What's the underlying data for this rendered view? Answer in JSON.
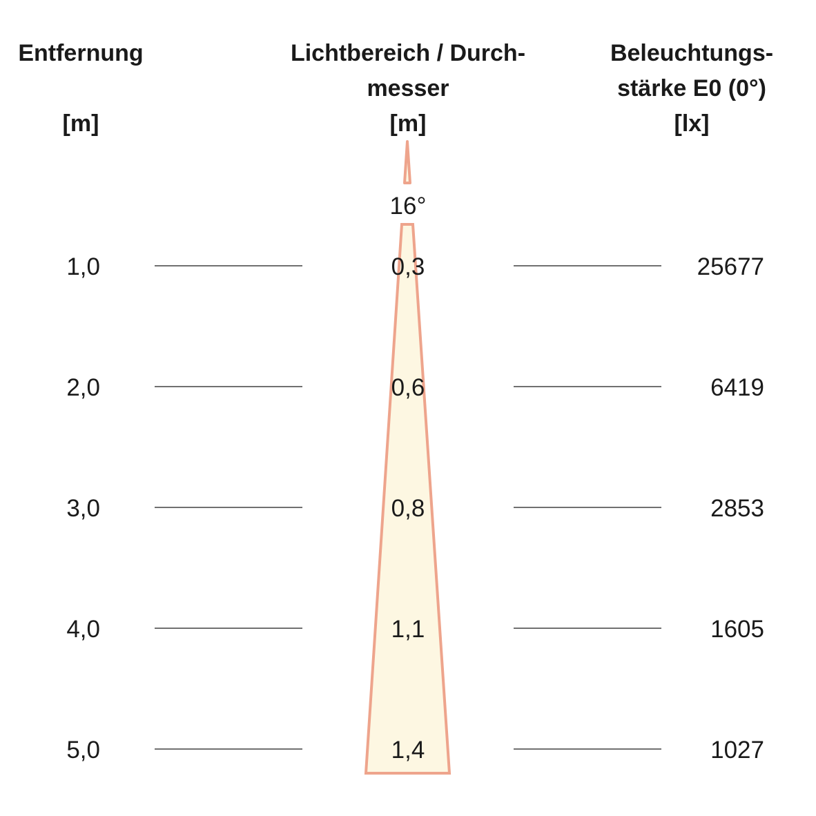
{
  "headers": {
    "distance": {
      "line1": "Entfernung",
      "unit": "[m]"
    },
    "diameter": {
      "line1": "Lichtbereich / Durch-",
      "line2": "messer",
      "unit": "[m]"
    },
    "illuminance": {
      "line1": "Beleuchtungs-",
      "line2": "stärke E0 (0°)",
      "unit": "[lx]"
    }
  },
  "beam_angle": "16°",
  "rows": [
    {
      "distance": "1,0",
      "diameter": "0,3",
      "illuminance": "25677"
    },
    {
      "distance": "2,0",
      "diameter": "0,6",
      "illuminance": "6419"
    },
    {
      "distance": "3,0",
      "diameter": "0,8",
      "illuminance": "2853"
    },
    {
      "distance": "4,0",
      "diameter": "1,1",
      "illuminance": "1605"
    },
    {
      "distance": "5,0",
      "diameter": "1,4",
      "illuminance": "1027"
    }
  ],
  "colors": {
    "cone_fill": "#fdf7e2",
    "cone_edge": "#eea48c",
    "text": "#1a1a1a",
    "line": "#1a1a1a"
  }
}
